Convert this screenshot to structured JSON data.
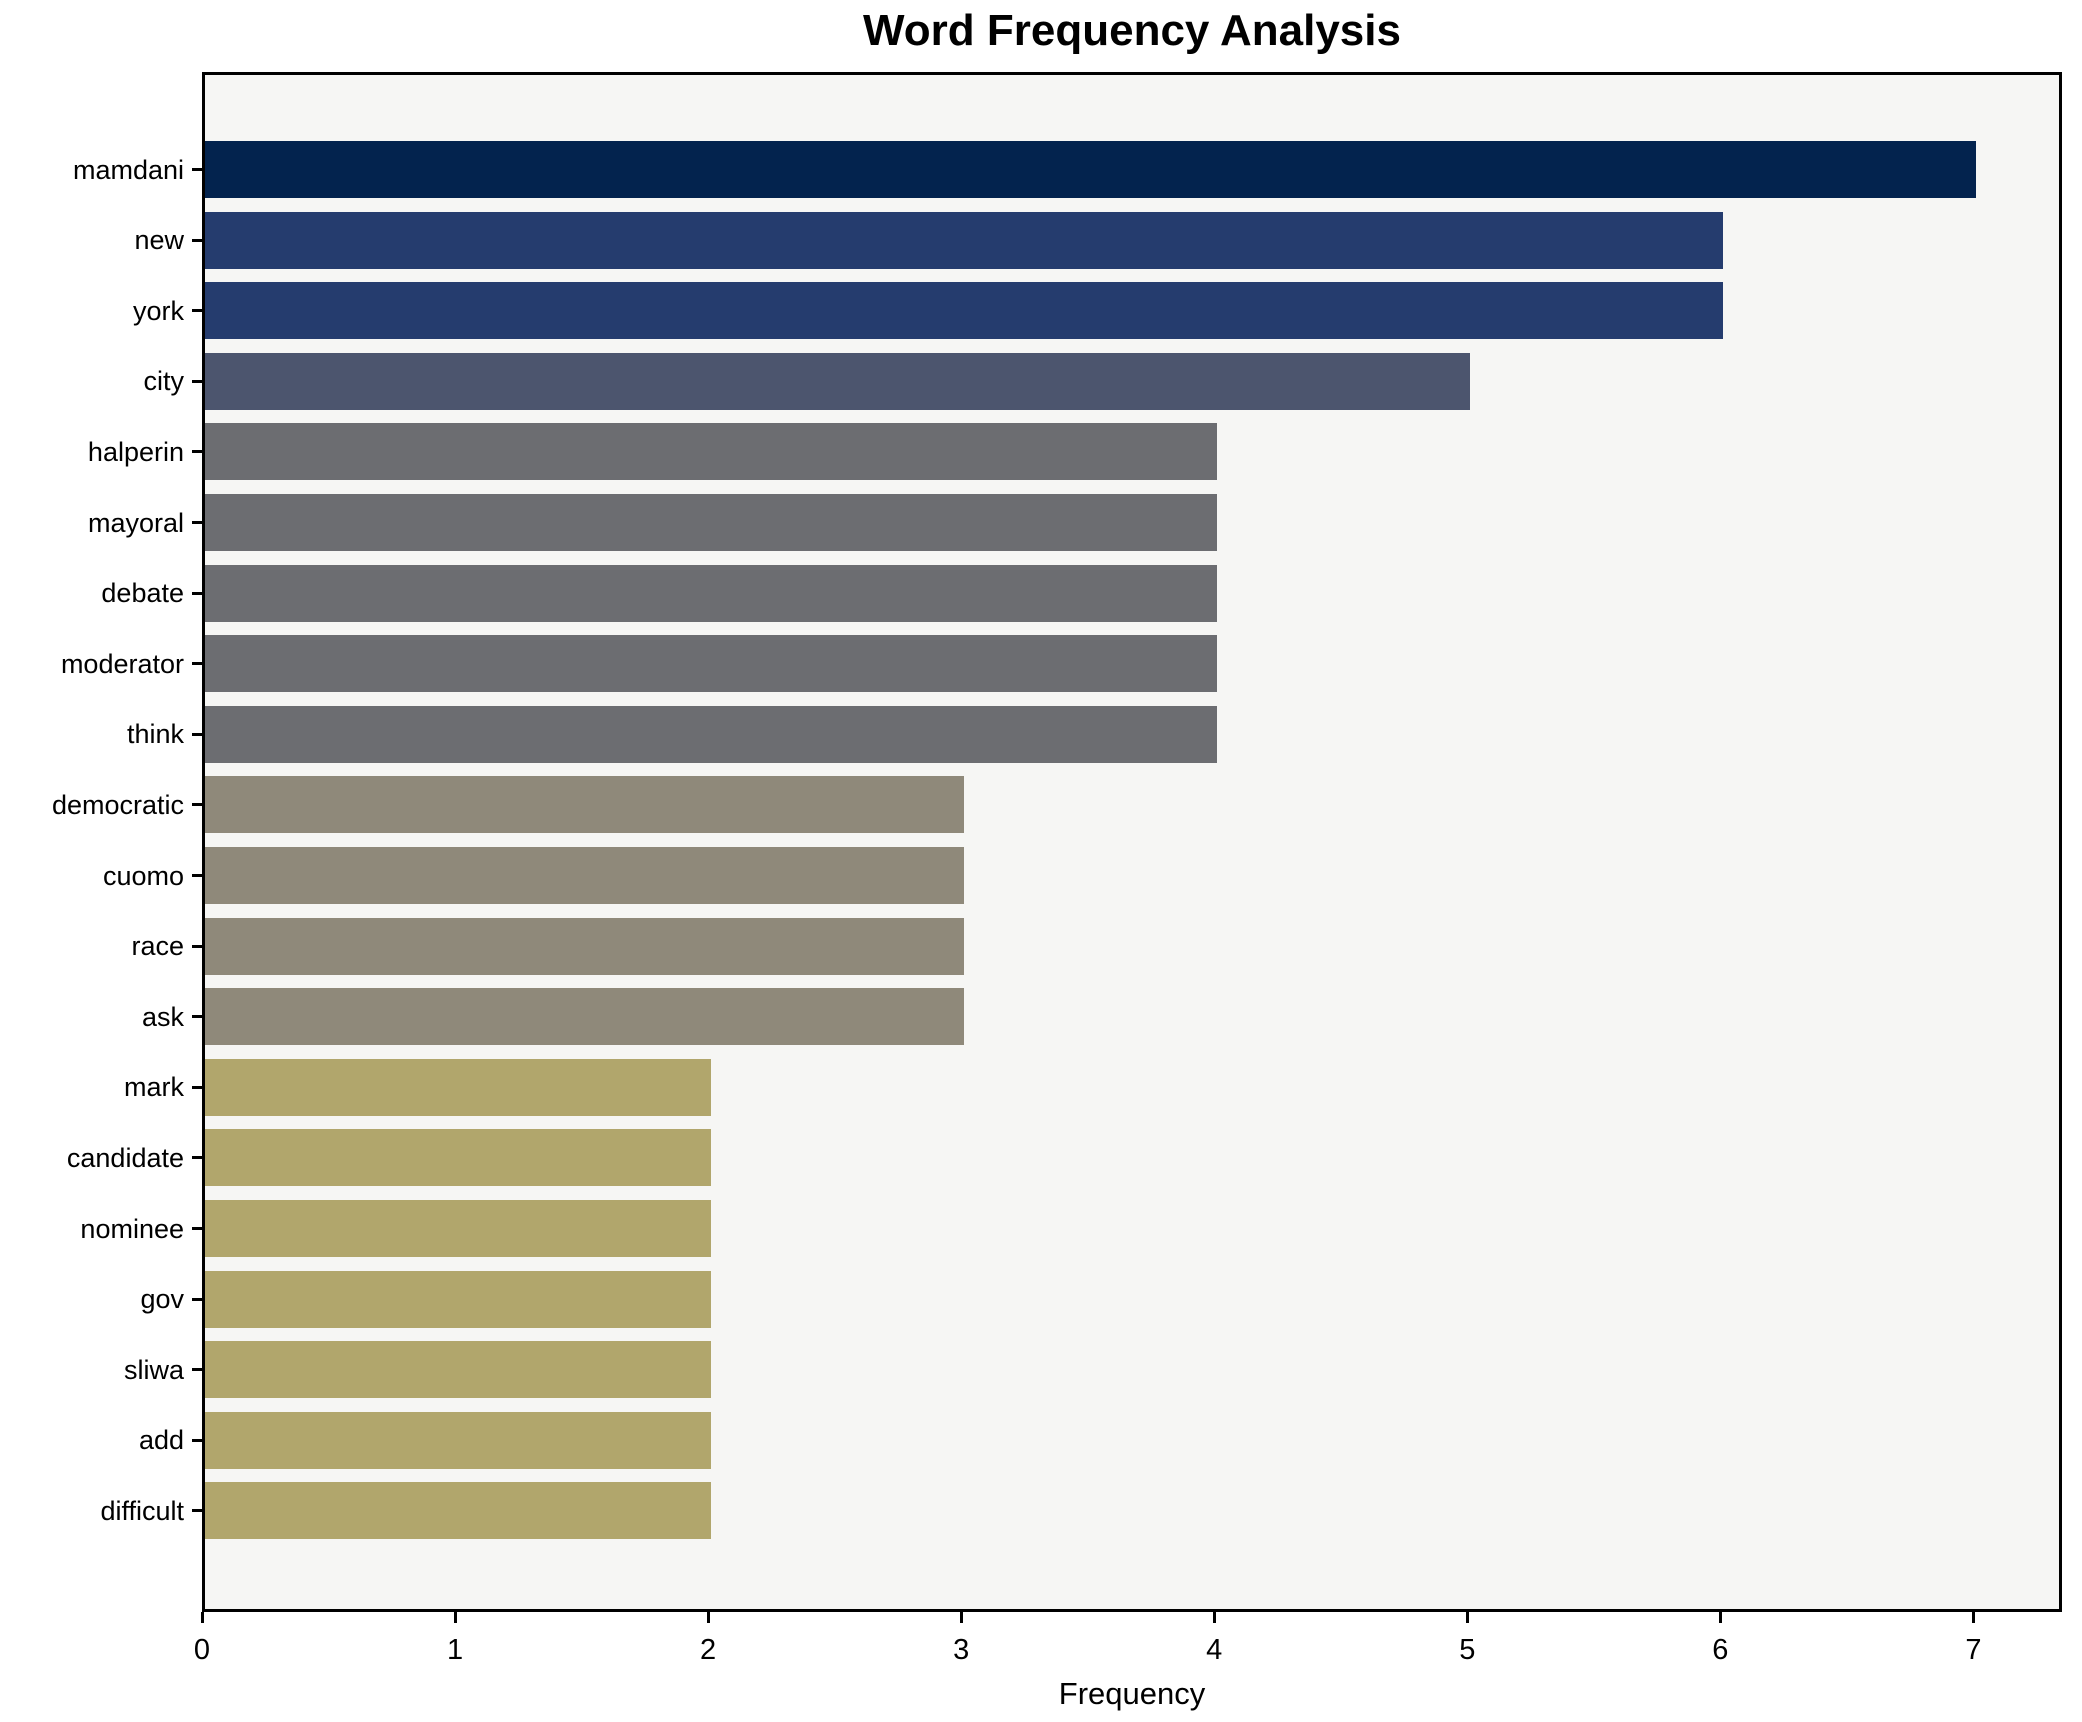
{
  "title": "Word Frequency Analysis",
  "chart_data": {
    "type": "bar",
    "orientation": "horizontal",
    "title": "Word Frequency Analysis",
    "xlabel": "Frequency",
    "ylabel": "",
    "categories": [
      "mamdani",
      "new",
      "york",
      "city",
      "halperin",
      "mayoral",
      "debate",
      "moderator",
      "think",
      "democratic",
      "cuomo",
      "race",
      "ask",
      "mark",
      "candidate",
      "nominee",
      "gov",
      "sliwa",
      "add",
      "difficult"
    ],
    "values": [
      7,
      6,
      6,
      5,
      4,
      4,
      4,
      4,
      4,
      3,
      3,
      3,
      3,
      2,
      2,
      2,
      2,
      2,
      2,
      2
    ],
    "bar_colors": [
      "#03234e",
      "#253c6e",
      "#253c6e",
      "#4c556e",
      "#6c6d71",
      "#6c6d71",
      "#6c6d71",
      "#6c6d71",
      "#6c6d71",
      "#8f897a",
      "#8f897a",
      "#8f897a",
      "#8f897a",
      "#b1a66c",
      "#b1a66c",
      "#b1a66c",
      "#b1a66c",
      "#b1a66c",
      "#b1a66c",
      "#b1a66c"
    ],
    "x_ticks": [
      "0",
      "1",
      "2",
      "3",
      "4",
      "5",
      "6",
      "7"
    ],
    "xlim": [
      0,
      7.35
    ],
    "grid": false,
    "legend": false,
    "colors": {
      "plot_background": "#f6f6f4",
      "figure_background": "#ffffff",
      "axis_spine": "#000000",
      "text": "#000000"
    }
  }
}
